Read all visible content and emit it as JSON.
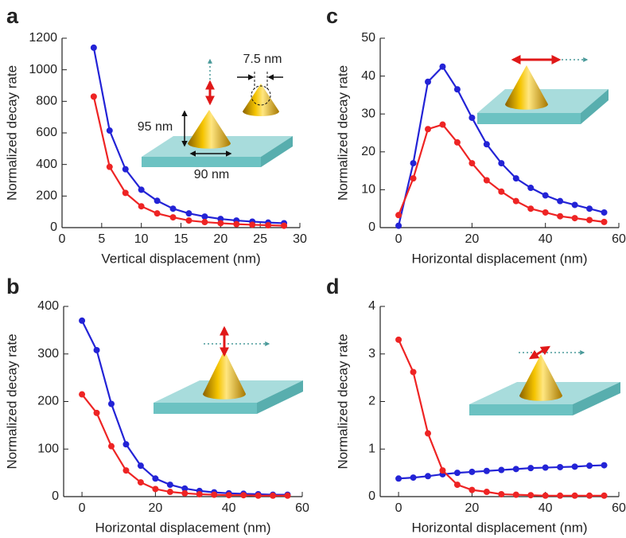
{
  "chart_data": [
    {
      "type": "line",
      "label": "a",
      "x_label": "Vertical displacement (nm)",
      "y_label": "Normalized decay rate",
      "x": [
        4,
        6,
        8,
        10,
        12,
        14,
        16,
        18,
        20,
        22,
        24,
        26,
        28
      ],
      "series": [
        {
          "color": "#2323d6",
          "values": [
            1140,
            615,
            370,
            240,
            170,
            120,
            90,
            70,
            55,
            45,
            38,
            32,
            28
          ]
        },
        {
          "color": "#ee2424",
          "values": [
            830,
            385,
            220,
            135,
            90,
            65,
            45,
            35,
            28,
            22,
            18,
            15,
            12
          ]
        }
      ],
      "xlim": [
        0,
        30
      ],
      "xticks": [
        0,
        5,
        10,
        15,
        20,
        25,
        30
      ],
      "ylim": [
        0,
        1200
      ],
      "yticks": [
        0,
        200,
        400,
        600,
        800,
        1000,
        1200
      ],
      "annotations": [
        "95 nm",
        "90 nm",
        "7.5 nm"
      ]
    },
    {
      "type": "line",
      "label": "b",
      "x_label": "Horizontal displacement (nm)",
      "y_label": "Normalized decay rate",
      "x": [
        0,
        4,
        8,
        12,
        16,
        20,
        24,
        28,
        32,
        36,
        40,
        44,
        48,
        52,
        56
      ],
      "series": [
        {
          "color": "#2323d6",
          "values": [
            370,
            308,
            195,
            110,
            65,
            38,
            25,
            17,
            12,
            9,
            7,
            6,
            5,
            4,
            4
          ]
        },
        {
          "color": "#ee2424",
          "values": [
            215,
            176,
            106,
            55,
            30,
            16,
            10,
            7,
            5,
            4,
            3,
            3,
            2,
            2,
            2
          ]
        }
      ],
      "xlim": [
        -5,
        60
      ],
      "xticks": [
        0,
        20,
        40,
        60
      ],
      "ylim": [
        0,
        400
      ],
      "yticks": [
        0,
        100,
        200,
        300,
        400
      ]
    },
    {
      "type": "line",
      "label": "c",
      "x_label": "Horizontal displacement (nm)",
      "y_label": "Normalized decay rate",
      "x": [
        0,
        4,
        8,
        12,
        16,
        20,
        24,
        28,
        32,
        36,
        40,
        44,
        48,
        52,
        56
      ],
      "series": [
        {
          "color": "#2323d6",
          "values": [
            0.5,
            17,
            38.5,
            42.5,
            36.5,
            29,
            22,
            17,
            13,
            10.5,
            8.5,
            7,
            6,
            5,
            4
          ]
        },
        {
          "color": "#ee2424",
          "values": [
            3.3,
            13,
            26,
            27.2,
            22.5,
            17,
            12.5,
            9.5,
            7,
            5,
            4,
            3,
            2.5,
            2,
            1.5
          ]
        }
      ],
      "xlim": [
        -5,
        60
      ],
      "xticks": [
        0,
        20,
        40,
        60
      ],
      "ylim": [
        0,
        50
      ],
      "yticks": [
        0,
        10,
        20,
        30,
        40,
        50
      ]
    },
    {
      "type": "line",
      "label": "d",
      "x_label": "Horizontal displacement (nm)",
      "y_label": "Normalized decay rate",
      "x": [
        0,
        4,
        8,
        12,
        16,
        20,
        24,
        28,
        32,
        36,
        40,
        44,
        48,
        52,
        56
      ],
      "series": [
        {
          "color": "#2323d6",
          "values": [
            0.38,
            0.4,
            0.43,
            0.47,
            0.5,
            0.52,
            0.54,
            0.56,
            0.58,
            0.6,
            0.61,
            0.62,
            0.63,
            0.65,
            0.66
          ]
        },
        {
          "color": "#ee2424",
          "values": [
            3.3,
            2.62,
            1.33,
            0.55,
            0.25,
            0.14,
            0.1,
            0.05,
            0.04,
            0.03,
            0.02,
            0.02,
            0.02,
            0.02,
            0.02
          ]
        }
      ],
      "xlim": [
        -5,
        60
      ],
      "xticks": [
        0,
        20,
        40,
        60
      ],
      "ylim": [
        0,
        4
      ],
      "yticks": [
        0,
        1,
        2,
        3,
        4
      ]
    }
  ]
}
